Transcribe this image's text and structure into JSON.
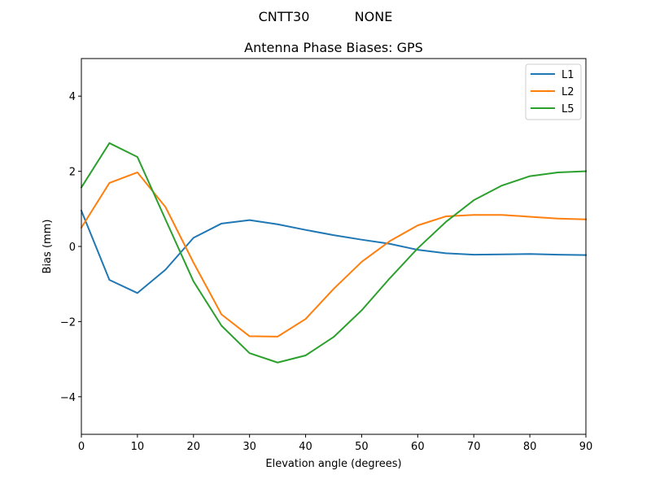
{
  "suptitle": {
    "left": "CNTT30",
    "right": "NONE"
  },
  "chart_data": {
    "type": "line",
    "title": "Antenna Phase Biases: GPS",
    "xlabel": "Elevation angle (degrees)",
    "ylabel": "Bias (mm)",
    "xlim": [
      0,
      90
    ],
    "ylim": [
      -5,
      5
    ],
    "xticks": [
      0,
      10,
      20,
      30,
      40,
      50,
      60,
      70,
      80,
      90
    ],
    "yticks": [
      -4,
      -2,
      0,
      2,
      4
    ],
    "grid": false,
    "legend_position": "upper right",
    "x": [
      0,
      5,
      10,
      15,
      20,
      25,
      30,
      35,
      40,
      45,
      50,
      55,
      60,
      65,
      70,
      75,
      80,
      85,
      90
    ],
    "series": [
      {
        "name": "L1",
        "color": "#1f77b4",
        "values": [
          0.95,
          -0.89,
          -1.24,
          -0.62,
          0.23,
          0.61,
          0.7,
          0.59,
          0.44,
          0.3,
          0.18,
          0.07,
          -0.09,
          -0.18,
          -0.22,
          -0.21,
          -0.2,
          -0.22,
          -0.23
        ]
      },
      {
        "name": "L2",
        "color": "#ff7f0e",
        "values": [
          0.5,
          1.69,
          1.97,
          1.05,
          -0.43,
          -1.81,
          -2.39,
          -2.4,
          -1.93,
          -1.13,
          -0.41,
          0.14,
          0.56,
          0.8,
          0.84,
          0.84,
          0.79,
          0.74,
          0.72
        ]
      },
      {
        "name": "L5",
        "color": "#2ca02c",
        "values": [
          1.57,
          2.75,
          2.38,
          0.72,
          -0.93,
          -2.11,
          -2.84,
          -3.09,
          -2.9,
          -2.41,
          -1.7,
          -0.85,
          -0.05,
          0.65,
          1.23,
          1.62,
          1.87,
          1.97,
          2.0
        ]
      }
    ]
  }
}
